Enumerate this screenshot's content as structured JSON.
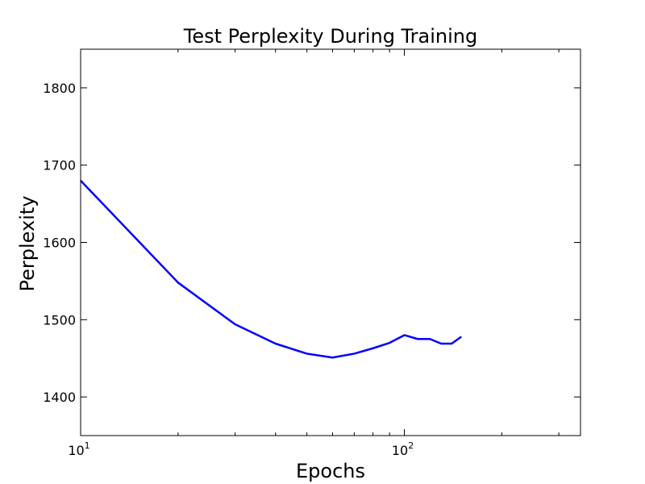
{
  "chart_data": {
    "type": "line",
    "title": "Test Perplexity During Training",
    "xlabel": "Epochs",
    "ylabel": "Perplexity",
    "xscale": "log",
    "xlim": [
      10,
      350
    ],
    "ylim": [
      1350,
      1850
    ],
    "x_ticks": [
      {
        "value": 10,
        "base": "10",
        "exp": "1"
      },
      {
        "value": 100,
        "base": "10",
        "exp": "2"
      }
    ],
    "y_ticks": [
      1400,
      1500,
      1600,
      1700,
      1800
    ],
    "y_tick_labels": [
      "1400",
      "1500",
      "1600",
      "1700",
      "1800"
    ],
    "grid": false,
    "legend": "none",
    "series": [
      {
        "color": "#0000ff",
        "x": [
          10,
          20,
          30,
          40,
          50,
          60,
          70,
          80,
          90,
          100,
          110,
          120,
          130,
          140,
          150
        ],
        "values": [
          1680,
          1548,
          1494,
          1469,
          1456,
          1451,
          1456,
          1463,
          1470,
          1480,
          1475,
          1475,
          1469,
          1469,
          1478
        ]
      }
    ]
  }
}
